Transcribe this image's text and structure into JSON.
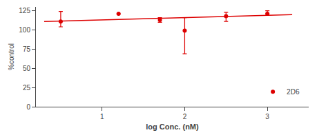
{
  "chart_data": {
    "type": "scatter",
    "xlabel": "log Conc. (nM)",
    "ylabel": "%control",
    "series": [
      {
        "type": "line",
        "color": "#dd0000",
        "line_style": "solid",
        "x": [
          0.3,
          3.3
        ],
        "values": [
          111,
          120
        ]
      },
      {
        "name": "2D6",
        "type": "scatter",
        "color": "#dd0000",
        "marker": "circle",
        "x": [
          0.5,
          1.2,
          1.7,
          2.0,
          2.5,
          3.0
        ],
        "values": [
          111,
          121,
          113,
          99,
          118,
          121
        ],
        "error_low": [
          7,
          0,
          3,
          30,
          7,
          0
        ],
        "error_high": [
          13,
          0,
          3,
          17,
          5,
          4
        ]
      }
    ],
    "xlim": [
      0.2,
      3.5
    ],
    "ylim": [
      0,
      130
    ],
    "xticks": [
      1,
      2,
      3
    ],
    "yticks": [
      0,
      25,
      50,
      75,
      100,
      125
    ],
    "grid": false,
    "legend": "lower right"
  }
}
